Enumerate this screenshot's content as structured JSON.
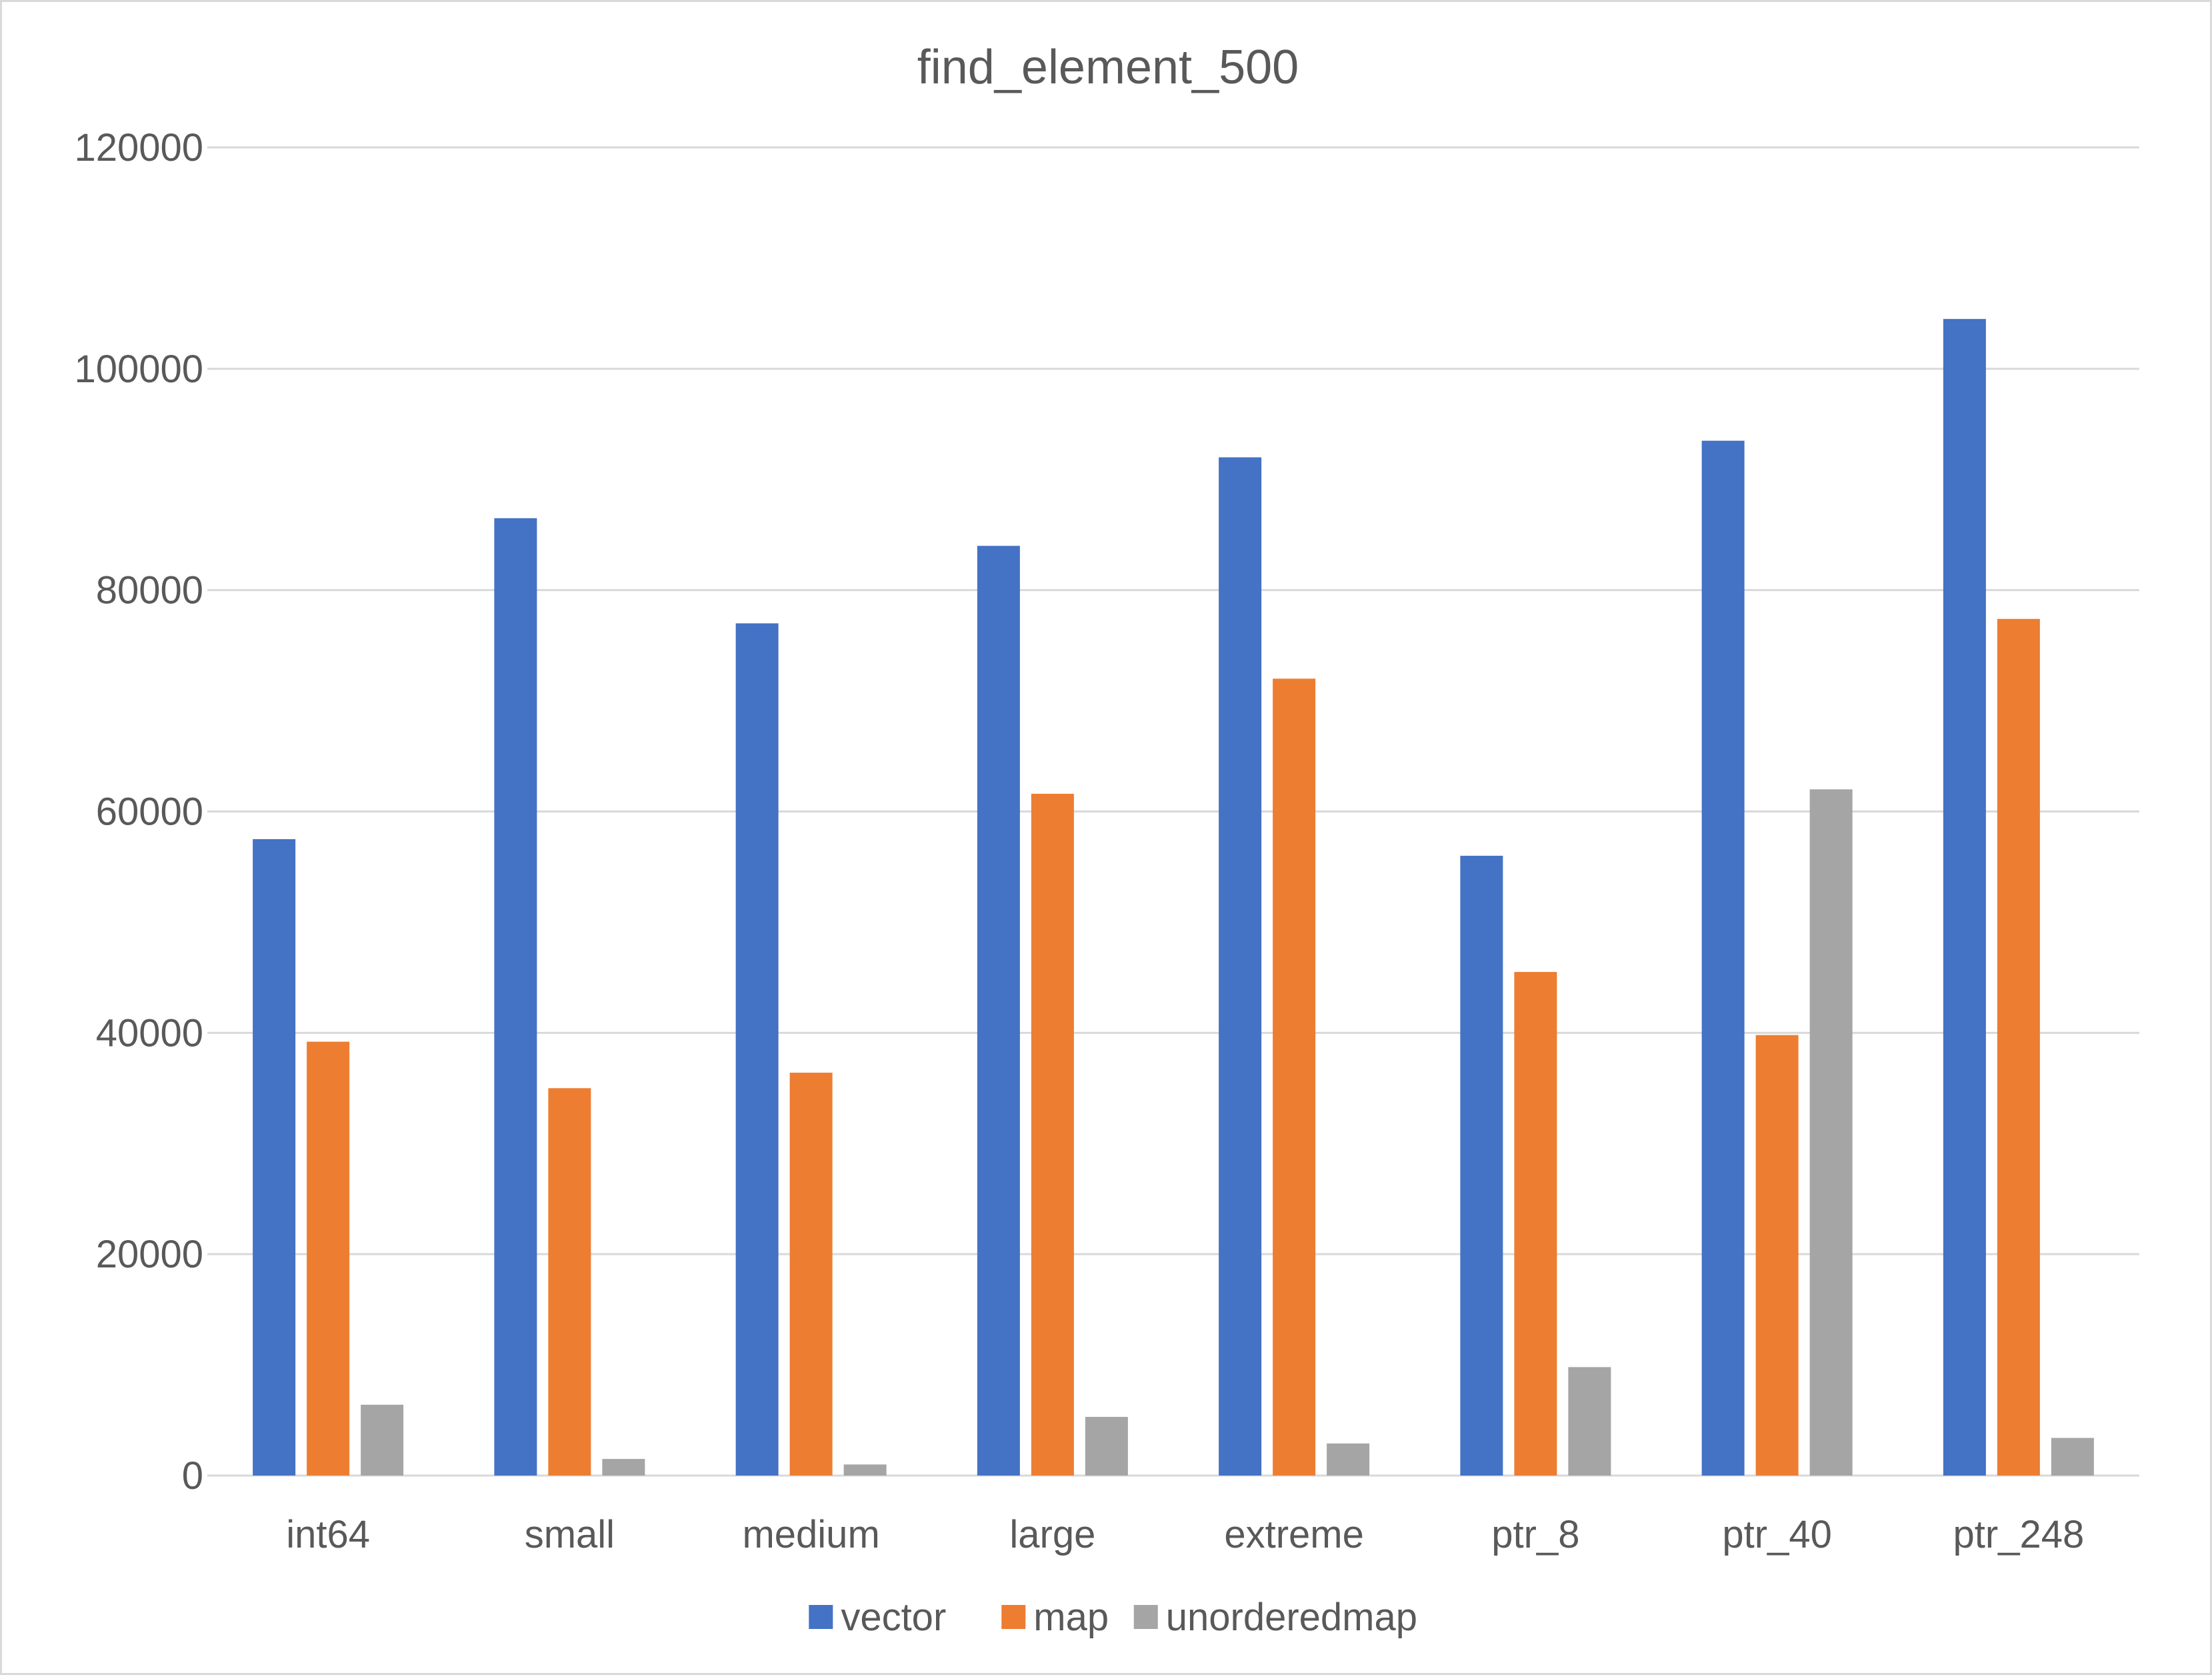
{
  "chart_data": {
    "type": "bar",
    "title": "find_element_500",
    "xlabel": "",
    "ylabel": "",
    "categories": [
      "int64",
      "small",
      "medium",
      "large",
      "extreme",
      "ptr_8",
      "ptr_40",
      "ptr_248"
    ],
    "series": [
      {
        "name": "vector",
        "color": "#4472C4",
        "values": [
          57500,
          86500,
          77000,
          84000,
          92000,
          56000,
          93500,
          104500
        ]
      },
      {
        "name": "map",
        "color": "#ED7D31",
        "values": [
          39200,
          35000,
          36400,
          61600,
          72000,
          45500,
          39800,
          77400
        ]
      },
      {
        "name": "unorderedmap",
        "color": "#A5A5A5",
        "values": [
          6400,
          1500,
          1000,
          5300,
          2900,
          9800,
          62000,
          3400
        ]
      }
    ],
    "ylim": [
      0,
      120000
    ],
    "yticks": [
      0,
      20000,
      40000,
      60000,
      80000,
      100000,
      120000
    ],
    "gridlines": true,
    "gridline_color": "#d9d9d9",
    "legend_position": "bottom"
  }
}
